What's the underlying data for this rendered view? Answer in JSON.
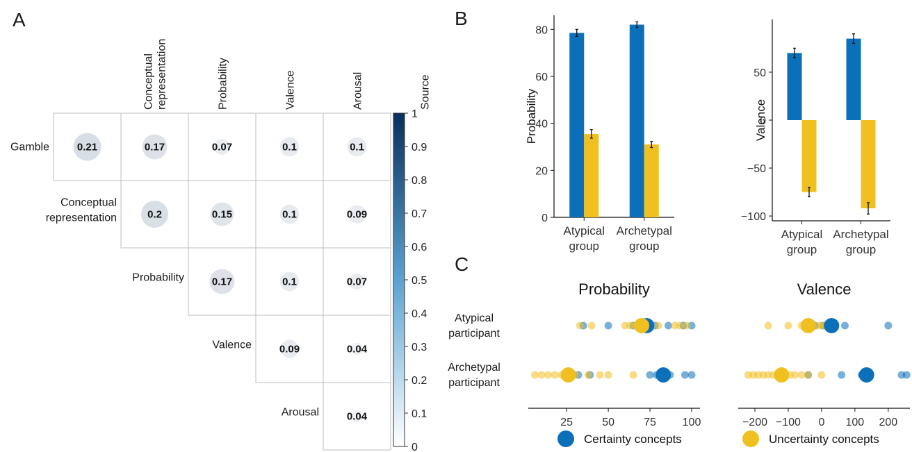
{
  "panel_labels": {
    "a": "A",
    "b": "B",
    "c": "C"
  },
  "colors": {
    "certainty": "#0b6fba",
    "uncertainty": "#f0c020",
    "cell_border": "#bdbdbd"
  },
  "chart_data": [
    {
      "type": "heatmap",
      "panel": "A",
      "columns": [
        "Conceptual\nrepresentation",
        "Probability",
        "Valence",
        "Arousal",
        "Source"
      ],
      "rows": [
        "Gamble",
        "Conceptual\nrepresentation",
        "Probability",
        "Valence",
        "Arousal"
      ],
      "cells": [
        {
          "row": 0,
          "col": 0,
          "value": 0.21,
          "label": "0.21"
        },
        {
          "row": 0,
          "col": 1,
          "value": 0.17,
          "label": "0.17"
        },
        {
          "row": 0,
          "col": 2,
          "value": 0.07,
          "label": "0.07"
        },
        {
          "row": 0,
          "col": 3,
          "value": 0.1,
          "label": "0.1"
        },
        {
          "row": 0,
          "col": 4,
          "value": 0.1,
          "label": "0.1"
        },
        {
          "row": 1,
          "col": 1,
          "value": 0.2,
          "label": "0.2"
        },
        {
          "row": 1,
          "col": 2,
          "value": 0.15,
          "label": "0.15"
        },
        {
          "row": 1,
          "col": 3,
          "value": 0.1,
          "label": "0.1"
        },
        {
          "row": 1,
          "col": 4,
          "value": 0.09,
          "label": "0.09"
        },
        {
          "row": 2,
          "col": 2,
          "value": 0.17,
          "label": "0.17"
        },
        {
          "row": 2,
          "col": 3,
          "value": 0.1,
          "label": "0.1"
        },
        {
          "row": 2,
          "col": 4,
          "value": 0.07,
          "label": "0.07"
        },
        {
          "row": 3,
          "col": 3,
          "value": 0.09,
          "label": "0.09"
        },
        {
          "row": 3,
          "col": 4,
          "value": 0.04,
          "label": "0.04"
        },
        {
          "row": 4,
          "col": 4,
          "value": 0.04,
          "label": "0.04"
        }
      ],
      "colorbar": {
        "ticks": [
          "0",
          "0.1",
          "0.2",
          "0.3",
          "0.4",
          "0.5",
          "0.6",
          "0.7",
          "0.8",
          "0.9",
          "1"
        ],
        "range": [
          0,
          1
        ],
        "low_color": "#ffffff",
        "high_color": "#0a2f5c"
      }
    },
    {
      "type": "bar",
      "panel": "B",
      "ylabel": "Probability",
      "categories": [
        "Atypical\ngroup",
        "Archetypal\ngroup"
      ],
      "ylim": [
        0,
        86
      ],
      "yticks": [
        0,
        20,
        40,
        60,
        80
      ],
      "series": [
        {
          "color": "#0b6fba",
          "values": [
            78.5,
            82
          ],
          "errors": [
            1.5,
            1.2
          ]
        },
        {
          "color": "#f0c020",
          "values": [
            35.5,
            31
          ],
          "errors": [
            1.8,
            1.3
          ]
        }
      ]
    },
    {
      "type": "bar",
      "panel": "B",
      "ylabel": "Valence",
      "categories": [
        "Atypical\ngroup",
        "Archetypal\ngroup"
      ],
      "ylim": [
        -105,
        105
      ],
      "yticks": [
        -100,
        -50,
        0,
        50
      ],
      "series": [
        {
          "color": "#0b6fba",
          "values": [
            70,
            85
          ],
          "errors": [
            5,
            5
          ]
        },
        {
          "color": "#f0c020",
          "values": [
            -75,
            -92
          ],
          "errors": [
            5,
            6
          ]
        }
      ]
    },
    {
      "type": "scatter",
      "panel": "C",
      "title": "Probability",
      "rows": [
        "Atypical\nparticipant",
        "Archetypal\nparticipant"
      ],
      "xlim": [
        2,
        105
      ],
      "xticks": [
        25,
        50,
        75,
        100
      ],
      "points": [
        {
          "row": 0,
          "group": "certainty",
          "x": [
            35,
            50,
            65,
            72,
            78,
            86,
            95,
            100
          ]
        },
        {
          "row": 0,
          "group": "uncertainty",
          "x": [
            33,
            40,
            60,
            63,
            66,
            68,
            75,
            80,
            90,
            93,
            97
          ]
        },
        {
          "row": 1,
          "group": "certainty",
          "x": [
            32,
            39,
            75,
            79,
            87,
            96,
            100
          ]
        },
        {
          "row": 1,
          "group": "uncertainty",
          "x": [
            6,
            10,
            14,
            18,
            22,
            26,
            30,
            38,
            45,
            50,
            65
          ]
        },
        {
          "row": 0,
          "group": "certainty_mean",
          "x": [
            73
          ]
        },
        {
          "row": 0,
          "group": "uncertainty_mean",
          "x": [
            70
          ]
        },
        {
          "row": 1,
          "group": "certainty_mean",
          "x": [
            83
          ]
        },
        {
          "row": 1,
          "group": "uncertainty_mean",
          "x": [
            26
          ]
        }
      ]
    },
    {
      "type": "scatter",
      "panel": "C",
      "title": "Valence",
      "rows": [
        "Atypical\nparticipant",
        "Archetypal\nparticipant"
      ],
      "xlim": [
        -250,
        265
      ],
      "xticks": [
        -200,
        -100,
        0,
        100,
        200
      ],
      "points": [
        {
          "row": 0,
          "group": "certainty",
          "x": [
            -20,
            5,
            15,
            30,
            70,
            200
          ]
        },
        {
          "row": 0,
          "group": "uncertainty",
          "x": [
            -160,
            -100,
            -60,
            -40,
            -10,
            0,
            10
          ]
        },
        {
          "row": 1,
          "group": "certainty",
          "x": [
            -40,
            60,
            120,
            140,
            240,
            255
          ]
        },
        {
          "row": 1,
          "group": "uncertainty",
          "x": [
            -220,
            -205,
            -190,
            -175,
            -160,
            -145,
            -130,
            -110,
            -95,
            -80,
            -60,
            -40,
            0
          ]
        },
        {
          "row": 0,
          "group": "certainty_mean",
          "x": [
            30
          ]
        },
        {
          "row": 0,
          "group": "uncertainty_mean",
          "x": [
            -40
          ]
        },
        {
          "row": 1,
          "group": "certainty_mean",
          "x": [
            135
          ]
        },
        {
          "row": 1,
          "group": "uncertainty_mean",
          "x": [
            -120
          ]
        }
      ]
    }
  ],
  "legend": {
    "certainty": "Certainty concepts",
    "uncertainty": "Uncertainty concepts"
  }
}
